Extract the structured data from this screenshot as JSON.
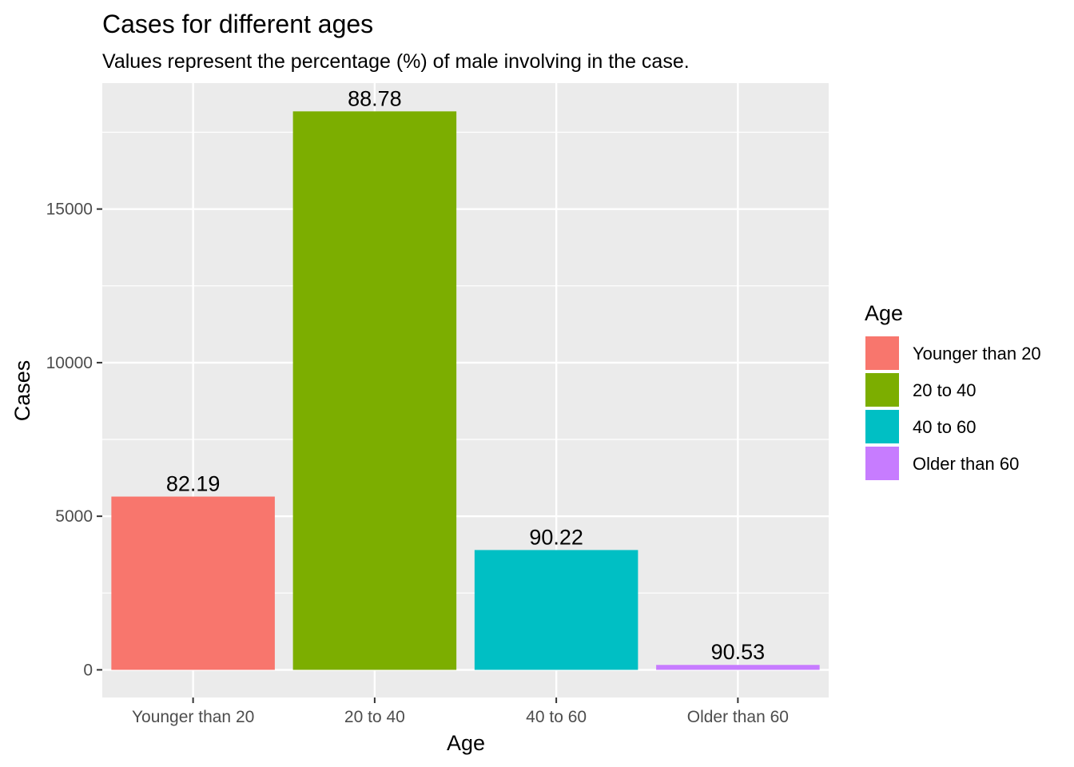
{
  "chart_data": {
    "type": "bar",
    "title": "Cases for different ages",
    "subtitle": "Values represent the percentage (%) of male involving in the case.",
    "xlabel": "Age",
    "ylabel": "Cases",
    "categories": [
      "Younger than 20",
      "20 to 40",
      "40 to 60",
      "Older than 60"
    ],
    "values": [
      5640,
      18180,
      3900,
      160
    ],
    "data_labels": [
      "82.19",
      "88.78",
      "90.22",
      "90.53"
    ],
    "colors": [
      "#F8766D",
      "#7CAE00",
      "#00BFC4",
      "#C77CFF"
    ],
    "ylim": [
      -900,
      19100
    ],
    "yticks": [
      0,
      5000,
      10000,
      15000
    ],
    "ytick_labels": [
      "0",
      "5000",
      "10000",
      "15000"
    ],
    "grid": true,
    "panel_background": "#EBEBEB",
    "legend": {
      "title": "Age",
      "position": "right",
      "entries": [
        "Younger than 20",
        "20 to 40",
        "40 to 60",
        "Older than 60"
      ]
    }
  }
}
